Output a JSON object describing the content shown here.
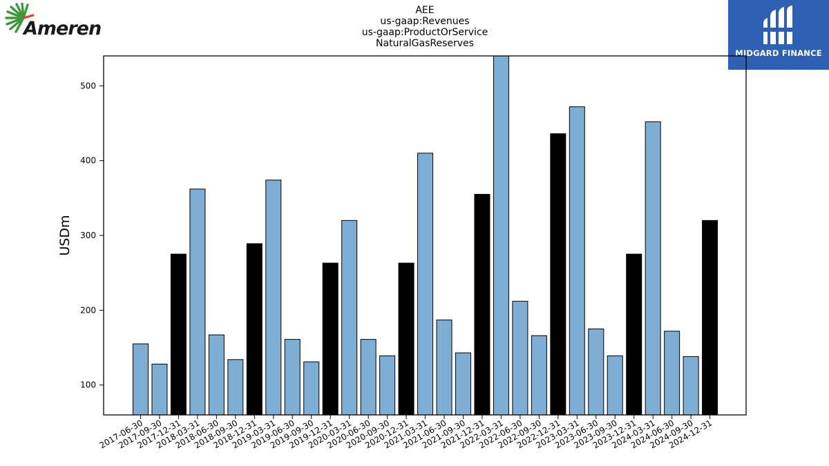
{
  "header": {
    "title_lines": [
      "AEE",
      "us-gaap:Revenues",
      "us-gaap:ProductOrService",
      "NaturalGasReserves"
    ]
  },
  "logos": {
    "left_name": "Ameren",
    "right_name": "MIDGARD FINANCE"
  },
  "colors": {
    "bar_default": "#7eaed3",
    "bar_highlight": "#000000",
    "logo_right_bg": "#2d5fb3",
    "logo_left_green": "#3a9a3a",
    "logo_left_red": "#e0452a"
  },
  "chart_data": {
    "type": "bar",
    "ylabel": "USDm",
    "ylim": [
      60,
      540
    ],
    "yticks": [
      100,
      200,
      300,
      400,
      500
    ],
    "grid": false,
    "categories": [
      "2017-06-30",
      "2017-09-30",
      "2017-12-31",
      "2018-03-31",
      "2018-06-30",
      "2018-09-30",
      "2018-12-31",
      "2019-03-31",
      "2019-06-30",
      "2019-09-30",
      "2019-12-31",
      "2020-03-31",
      "2020-06-30",
      "2020-09-30",
      "2020-12-31",
      "2021-03-31",
      "2021-06-30",
      "2021-09-30",
      "2021-12-31",
      "2022-03-31",
      "2022-06-30",
      "2022-09-30",
      "2022-12-31",
      "2023-03-31",
      "2023-06-30",
      "2023-09-30",
      "2023-12-31",
      "2024-03-31",
      "2024-06-30",
      "2024-09-30",
      "2024-12-31"
    ],
    "values": [
      155,
      128,
      275,
      362,
      167,
      134,
      289,
      374,
      161,
      131,
      263,
      320,
      161,
      139,
      263,
      410,
      187,
      143,
      355,
      541,
      212,
      166,
      436,
      472,
      175,
      139,
      275,
      452,
      172,
      138,
      320
    ],
    "highlighted": [
      false,
      false,
      true,
      false,
      false,
      false,
      true,
      false,
      false,
      false,
      true,
      false,
      false,
      false,
      true,
      false,
      false,
      false,
      true,
      false,
      false,
      false,
      true,
      false,
      false,
      false,
      true,
      false,
      false,
      false,
      true
    ]
  }
}
